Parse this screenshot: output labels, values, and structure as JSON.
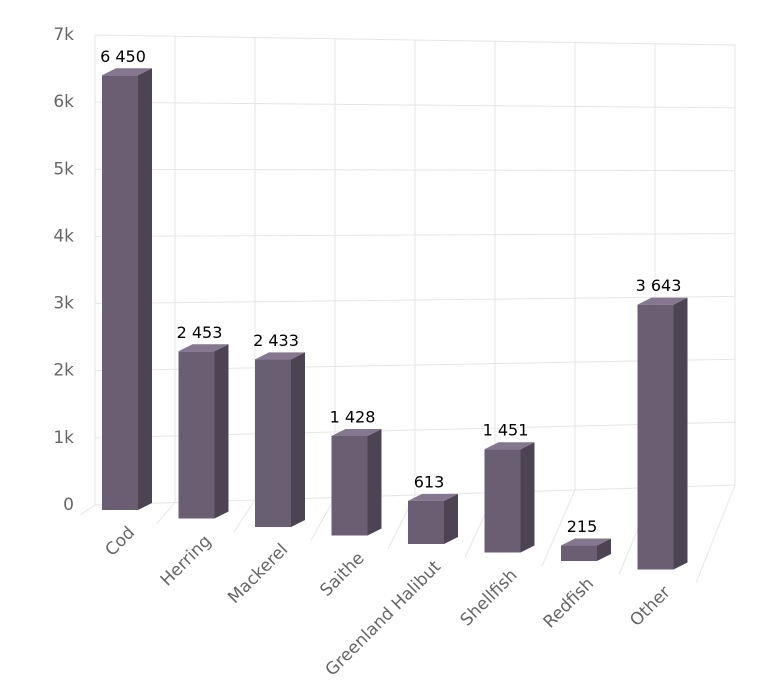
{
  "chart_data": {
    "type": "bar3d",
    "categories": [
      "Cod",
      "Herring",
      "Mackerel",
      "Saithe",
      "Greenland Halibut",
      "Shellfish",
      "Redfish",
      "Other"
    ],
    "values": [
      6450,
      2453,
      2433,
      1428,
      613,
      1451,
      215,
      3643
    ],
    "value_labels": [
      "6 450",
      "2 453",
      "2 433",
      "1 428",
      "613",
      "1 451",
      "215",
      "3 643"
    ],
    "color": "#6a5f72",
    "ylim": [
      0,
      7000
    ],
    "yticks": [
      0,
      {
        "value": 1000,
        "label": "1k"
      },
      {
        "value": 2000,
        "label": "2k"
      },
      {
        "value": 3000,
        "label": "3k"
      },
      {
        "value": 4000,
        "label": "4k"
      },
      {
        "value": 5000,
        "label": "5k"
      },
      {
        "value": 6000,
        "label": "6k"
      },
      {
        "value": 7000,
        "label": "7k"
      }
    ],
    "grid": true
  }
}
